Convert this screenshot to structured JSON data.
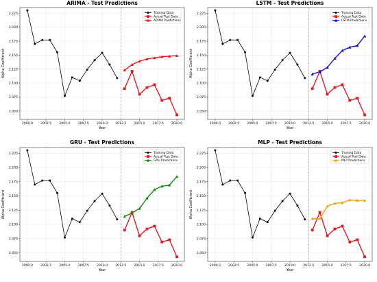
{
  "chart_data": [
    {
      "type": "line",
      "title": "ARIMA - Test Predictions",
      "xlabel": "Year",
      "ylabel": "Alpha Coefficient",
      "xlim": [
        1999.0,
        2021.0
      ],
      "ylim": [
        2.035,
        2.235
      ],
      "xticks": [
        2000,
        2002.5,
        2005,
        2007.5,
        2010,
        2012.5,
        2015,
        2017.5,
        2020
      ],
      "xtick_labels": [
        "2000.0",
        "2002.5",
        "2005.0",
        "2007.5",
        "2010.0",
        "2012.5",
        "2015.0",
        "2017.5",
        "2020.0"
      ],
      "yticks": [
        2.05,
        2.075,
        2.1,
        2.125,
        2.15,
        2.175,
        2.2,
        2.225
      ],
      "ytick_labels": [
        "2.050",
        "2.075",
        "2.100",
        "2.125",
        "2.150",
        "2.175",
        "2.200",
        "2.225"
      ],
      "split_line_x": 2012.5,
      "legend_position": "upper right",
      "series": [
        {
          "name": "Training Data",
          "color": "#000000",
          "marker": "circle",
          "x": [
            2000,
            2001,
            2002,
            2003,
            2004,
            2005,
            2006,
            2007,
            2008,
            2009,
            2010,
            2011,
            2012
          ],
          "y": [
            2.23,
            2.17,
            2.177,
            2.177,
            2.155,
            2.077,
            2.11,
            2.104,
            2.124,
            2.141,
            2.154,
            2.133,
            2.109
          ]
        },
        {
          "name": "Actual Test Data",
          "color": "#e8181c",
          "marker": "square",
          "x": [
            2013,
            2014,
            2015,
            2016,
            2017,
            2018,
            2019,
            2020
          ],
          "y": [
            2.09,
            2.121,
            2.08,
            2.092,
            2.097,
            2.069,
            2.073,
            2.043
          ]
        },
        {
          "name": "ARIMA Predictions",
          "color": "#e8181c",
          "marker": "triangle",
          "x": [
            2013,
            2014,
            2015,
            2016,
            2017,
            2018,
            2019,
            2020
          ],
          "y": [
            2.123,
            2.133,
            2.139,
            2.143,
            2.145,
            2.147,
            2.148,
            2.149
          ]
        }
      ]
    },
    {
      "type": "line",
      "title": "LSTM - Test Predictions",
      "xlabel": "Year",
      "ylabel": "Alpha Coefficient",
      "xlim": [
        1999.0,
        2021.0
      ],
      "ylim": [
        2.035,
        2.235
      ],
      "xticks": [
        2000,
        2002.5,
        2005,
        2007.5,
        2010,
        2012.5,
        2015,
        2017.5,
        2020
      ],
      "xtick_labels": [
        "2000.0",
        "2002.5",
        "2005.0",
        "2007.5",
        "2010.0",
        "2012.5",
        "2015.0",
        "2017.5",
        "2020.0"
      ],
      "yticks": [
        2.05,
        2.075,
        2.1,
        2.125,
        2.15,
        2.175,
        2.2,
        2.225
      ],
      "ytick_labels": [
        "2.050",
        "2.075",
        "2.100",
        "2.125",
        "2.150",
        "2.175",
        "2.200",
        "2.225"
      ],
      "split_line_x": 2012.5,
      "legend_position": "upper right",
      "series": [
        {
          "name": "Training Data",
          "color": "#000000",
          "marker": "circle",
          "x": [
            2000,
            2001,
            2002,
            2003,
            2004,
            2005,
            2006,
            2007,
            2008,
            2009,
            2010,
            2011,
            2012
          ],
          "y": [
            2.23,
            2.17,
            2.177,
            2.177,
            2.155,
            2.077,
            2.11,
            2.104,
            2.124,
            2.141,
            2.154,
            2.133,
            2.109
          ]
        },
        {
          "name": "Actual Test Data",
          "color": "#e8181c",
          "marker": "square",
          "x": [
            2013,
            2014,
            2015,
            2016,
            2017,
            2018,
            2019,
            2020
          ],
          "y": [
            2.09,
            2.121,
            2.08,
            2.092,
            2.097,
            2.069,
            2.073,
            2.043
          ]
        },
        {
          "name": "LSTM Predictions",
          "color": "#1515d0",
          "marker": "triangle",
          "x": [
            2013,
            2014,
            2015,
            2016,
            2017,
            2018,
            2019,
            2020
          ],
          "y": [
            2.116,
            2.12,
            2.128,
            2.144,
            2.158,
            2.164,
            2.167,
            2.184
          ]
        }
      ]
    },
    {
      "type": "line",
      "title": "GRU - Test Predictions",
      "xlabel": "Year",
      "ylabel": "Alpha Coefficient",
      "xlim": [
        1999.0,
        2021.0
      ],
      "ylim": [
        2.035,
        2.235
      ],
      "xticks": [
        2000,
        2002.5,
        2005,
        2007.5,
        2010,
        2012.5,
        2015,
        2017.5,
        2020
      ],
      "xtick_labels": [
        "2000.0",
        "2002.5",
        "2005.0",
        "2007.5",
        "2010.0",
        "2012.5",
        "2015.0",
        "2017.5",
        "2020.0"
      ],
      "yticks": [
        2.05,
        2.075,
        2.1,
        2.125,
        2.15,
        2.175,
        2.2,
        2.225
      ],
      "ytick_labels": [
        "2.050",
        "2.075",
        "2.100",
        "2.125",
        "2.150",
        "2.175",
        "2.200",
        "2.225"
      ],
      "split_line_x": 2012.5,
      "legend_position": "upper right",
      "series": [
        {
          "name": "Training Data",
          "color": "#000000",
          "marker": "circle",
          "x": [
            2000,
            2001,
            2002,
            2003,
            2004,
            2005,
            2006,
            2007,
            2008,
            2009,
            2010,
            2011,
            2012
          ],
          "y": [
            2.23,
            2.17,
            2.177,
            2.177,
            2.155,
            2.077,
            2.11,
            2.104,
            2.124,
            2.141,
            2.154,
            2.133,
            2.109
          ]
        },
        {
          "name": "Actual Test Data",
          "color": "#e8181c",
          "marker": "square",
          "x": [
            2013,
            2014,
            2015,
            2016,
            2017,
            2018,
            2019,
            2020
          ],
          "y": [
            2.09,
            2.121,
            2.08,
            2.092,
            2.097,
            2.069,
            2.073,
            2.043
          ]
        },
        {
          "name": "GRU Predictions",
          "color": "#108a10",
          "marker": "triangle",
          "x": [
            2013,
            2014,
            2015,
            2016,
            2017,
            2018,
            2019,
            2020
          ],
          "y": [
            2.114,
            2.12,
            2.128,
            2.146,
            2.161,
            2.167,
            2.169,
            2.184
          ]
        }
      ]
    },
    {
      "type": "line",
      "title": "MLP - Test Predictions",
      "xlabel": "Year",
      "ylabel": "Alpha Coefficient",
      "xlim": [
        1999.0,
        2021.0
      ],
      "ylim": [
        2.035,
        2.235
      ],
      "xticks": [
        2000,
        2002.5,
        2005,
        2007.5,
        2010,
        2012.5,
        2015,
        2017.5,
        2020
      ],
      "xtick_labels": [
        "2000.0",
        "2002.5",
        "2005.0",
        "2007.5",
        "2010.0",
        "2012.5",
        "2015.0",
        "2017.5",
        "2020.0"
      ],
      "yticks": [
        2.05,
        2.075,
        2.1,
        2.125,
        2.15,
        2.175,
        2.2,
        2.225
      ],
      "ytick_labels": [
        "2.050",
        "2.075",
        "2.100",
        "2.125",
        "2.150",
        "2.175",
        "2.200",
        "2.225"
      ],
      "split_line_x": 2012.5,
      "legend_position": "upper right",
      "series": [
        {
          "name": "Training Data",
          "color": "#000000",
          "marker": "circle",
          "x": [
            2000,
            2001,
            2002,
            2003,
            2004,
            2005,
            2006,
            2007,
            2008,
            2009,
            2010,
            2011,
            2012
          ],
          "y": [
            2.23,
            2.17,
            2.177,
            2.177,
            2.155,
            2.077,
            2.11,
            2.104,
            2.124,
            2.141,
            2.154,
            2.133,
            2.109
          ]
        },
        {
          "name": "Actual Test Data",
          "color": "#e8181c",
          "marker": "square",
          "x": [
            2013,
            2014,
            2015,
            2016,
            2017,
            2018,
            2019,
            2020
          ],
          "y": [
            2.09,
            2.121,
            2.08,
            2.092,
            2.097,
            2.069,
            2.073,
            2.043
          ]
        },
        {
          "name": "MLP Predictions",
          "color": "#f5a011",
          "marker": "triangle",
          "x": [
            2013,
            2014,
            2015,
            2016,
            2017,
            2018,
            2019,
            2020
          ],
          "y": [
            2.11,
            2.11,
            2.132,
            2.137,
            2.138,
            2.143,
            2.142,
            2.142
          ]
        }
      ]
    }
  ]
}
